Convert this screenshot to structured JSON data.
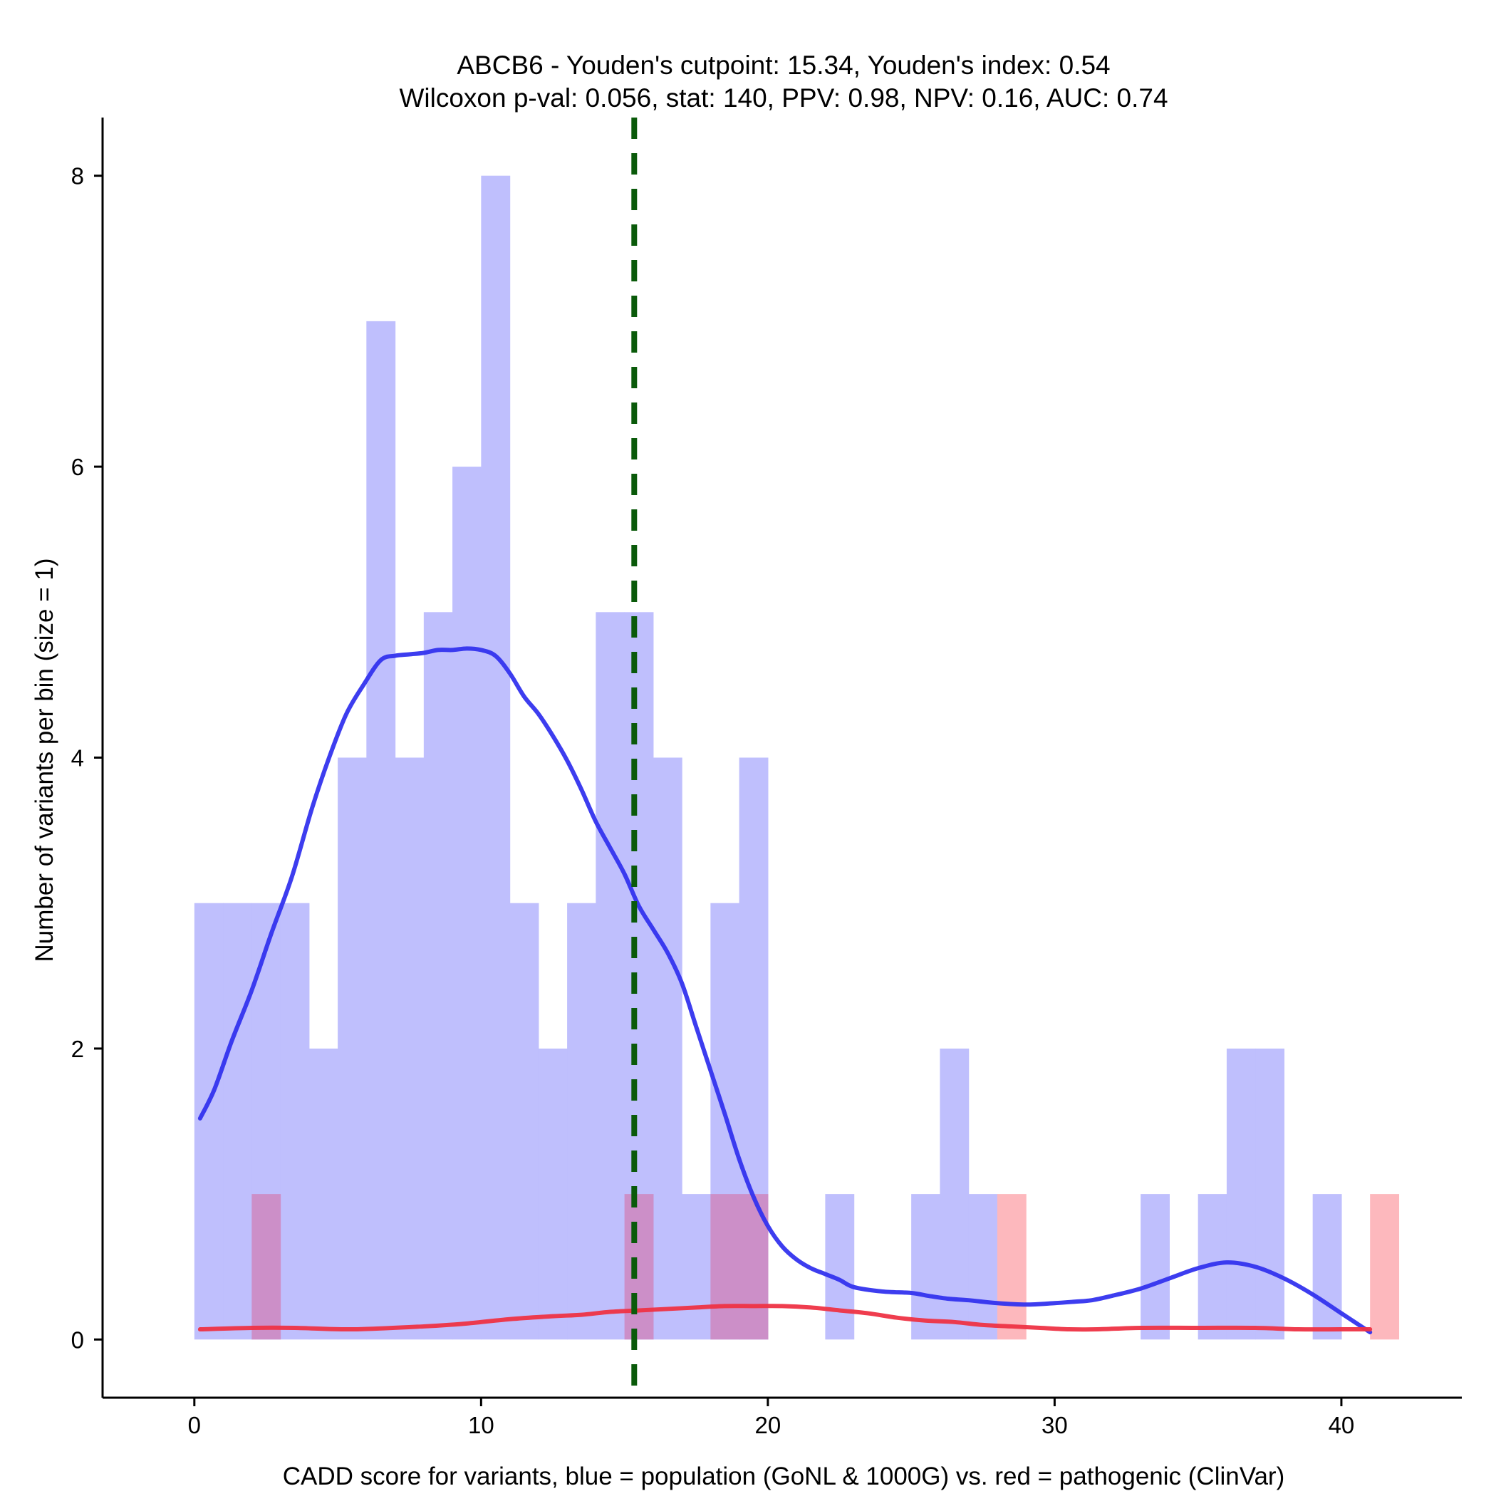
{
  "chart_data": {
    "type": "bar",
    "title": "ABCB6 - Youden's cutpoint: 15.34, Youden's index: 0.54",
    "subtitle": "Wilcoxon p-val: 0.056, stat: 140, PPV: 0.98, NPV: 0.16, AUC: 0.74",
    "xlabel": "CADD score for variants, blue = population (GoNL & 1000G) vs. red = pathogenic (ClinVar)",
    "ylabel": "Number of variants per bin (size = 1)",
    "xlim": [
      -3.2,
      44.2
    ],
    "ylim": [
      -0.4,
      8.4
    ],
    "x_ticks": [
      0,
      10,
      20,
      30,
      40
    ],
    "y_ticks": [
      0,
      2,
      4,
      6,
      8
    ],
    "bin_width": 1,
    "cutpoint": 15.34,
    "colors": {
      "population_bars": "#bfbffd",
      "pathogenic_bars": "#fdb8bd",
      "overlap_bars": "#cc8fc8",
      "population_density": "#3333ee",
      "pathogenic_density": "#ee3344",
      "cutpoint_line": "#0a5a0a"
    },
    "series": [
      {
        "name": "population (GoNL & 1000G)",
        "bin_starts": [
          0,
          1,
          2,
          3,
          4,
          5,
          6,
          7,
          8,
          9,
          10,
          11,
          12,
          13,
          14,
          15,
          16,
          17,
          18,
          19,
          20,
          21,
          22,
          23,
          24,
          25,
          26,
          27,
          28,
          29,
          30,
          31,
          32,
          33,
          34,
          35,
          36,
          37,
          38,
          39,
          40,
          41
        ],
        "values": [
          3,
          3,
          3,
          3,
          2,
          4,
          7,
          4,
          5,
          6,
          8,
          3,
          2,
          3,
          5,
          5,
          4,
          1,
          3,
          4,
          0,
          0,
          1,
          0,
          0,
          1,
          2,
          1,
          0,
          0,
          0,
          0,
          0,
          1,
          0,
          1,
          2,
          2,
          0,
          1,
          0,
          0
        ]
      },
      {
        "name": "pathogenic (ClinVar)",
        "bin_starts": [
          2,
          15,
          18,
          19,
          28,
          41
        ],
        "values": [
          1,
          1,
          1,
          1,
          1,
          1
        ]
      }
    ],
    "density_population": {
      "x": [
        0.2,
        0.7,
        1.3,
        2.0,
        2.7,
        3.4,
        4.1,
        4.7,
        5.3,
        5.9,
        6.5,
        7.0,
        7.5,
        8.0,
        8.5,
        9.0,
        9.5,
        10.0,
        10.5,
        11.0,
        11.5,
        12.0,
        12.5,
        13.0,
        13.5,
        14.0,
        14.5,
        15.0,
        15.5,
        16.0,
        16.5,
        17.0,
        17.5,
        18.0,
        18.5,
        19.0,
        19.5,
        20.0,
        20.5,
        21.0,
        21.5,
        22.0,
        22.5,
        23.0,
        24.0,
        25.0,
        25.6,
        26.3,
        27.0,
        28.0,
        29.0,
        30.0,
        30.7,
        31.3,
        32.0,
        33.0,
        34.0,
        35.0,
        36.0,
        37.0,
        38.0,
        39.0,
        40.0,
        41.0
      ],
      "y": [
        1.52,
        1.72,
        2.05,
        2.4,
        2.8,
        3.18,
        3.65,
        4.0,
        4.3,
        4.5,
        4.67,
        4.7,
        4.71,
        4.72,
        4.74,
        4.74,
        4.75,
        4.74,
        4.7,
        4.58,
        4.42,
        4.3,
        4.15,
        3.98,
        3.78,
        3.56,
        3.38,
        3.2,
        2.98,
        2.82,
        2.66,
        2.45,
        2.15,
        1.85,
        1.55,
        1.24,
        0.98,
        0.78,
        0.64,
        0.55,
        0.49,
        0.45,
        0.41,
        0.36,
        0.33,
        0.32,
        0.3,
        0.28,
        0.27,
        0.25,
        0.24,
        0.25,
        0.26,
        0.27,
        0.3,
        0.35,
        0.42,
        0.49,
        0.53,
        0.5,
        0.42,
        0.31,
        0.18,
        0.05
      ]
    },
    "density_pathogenic": {
      "x": [
        0.2,
        2.0,
        3.5,
        5.5,
        8.0,
        9.5,
        11.0,
        12.5,
        13.5,
        14.5,
        15.5,
        16.5,
        17.5,
        18.5,
        19.5,
        20.5,
        21.5,
        22.5,
        23.5,
        24.5,
        25.5,
        26.5,
        27.5,
        28.5,
        29.5,
        30.5,
        31.5,
        33.0,
        35.0,
        37.0,
        38.5,
        40.0,
        41.0
      ],
      "y": [
        0.07,
        0.08,
        0.08,
        0.07,
        0.09,
        0.11,
        0.14,
        0.16,
        0.17,
        0.19,
        0.2,
        0.21,
        0.22,
        0.23,
        0.23,
        0.23,
        0.22,
        0.2,
        0.18,
        0.15,
        0.13,
        0.12,
        0.1,
        0.09,
        0.08,
        0.07,
        0.07,
        0.08,
        0.08,
        0.08,
        0.07,
        0.07,
        0.07
      ]
    }
  }
}
